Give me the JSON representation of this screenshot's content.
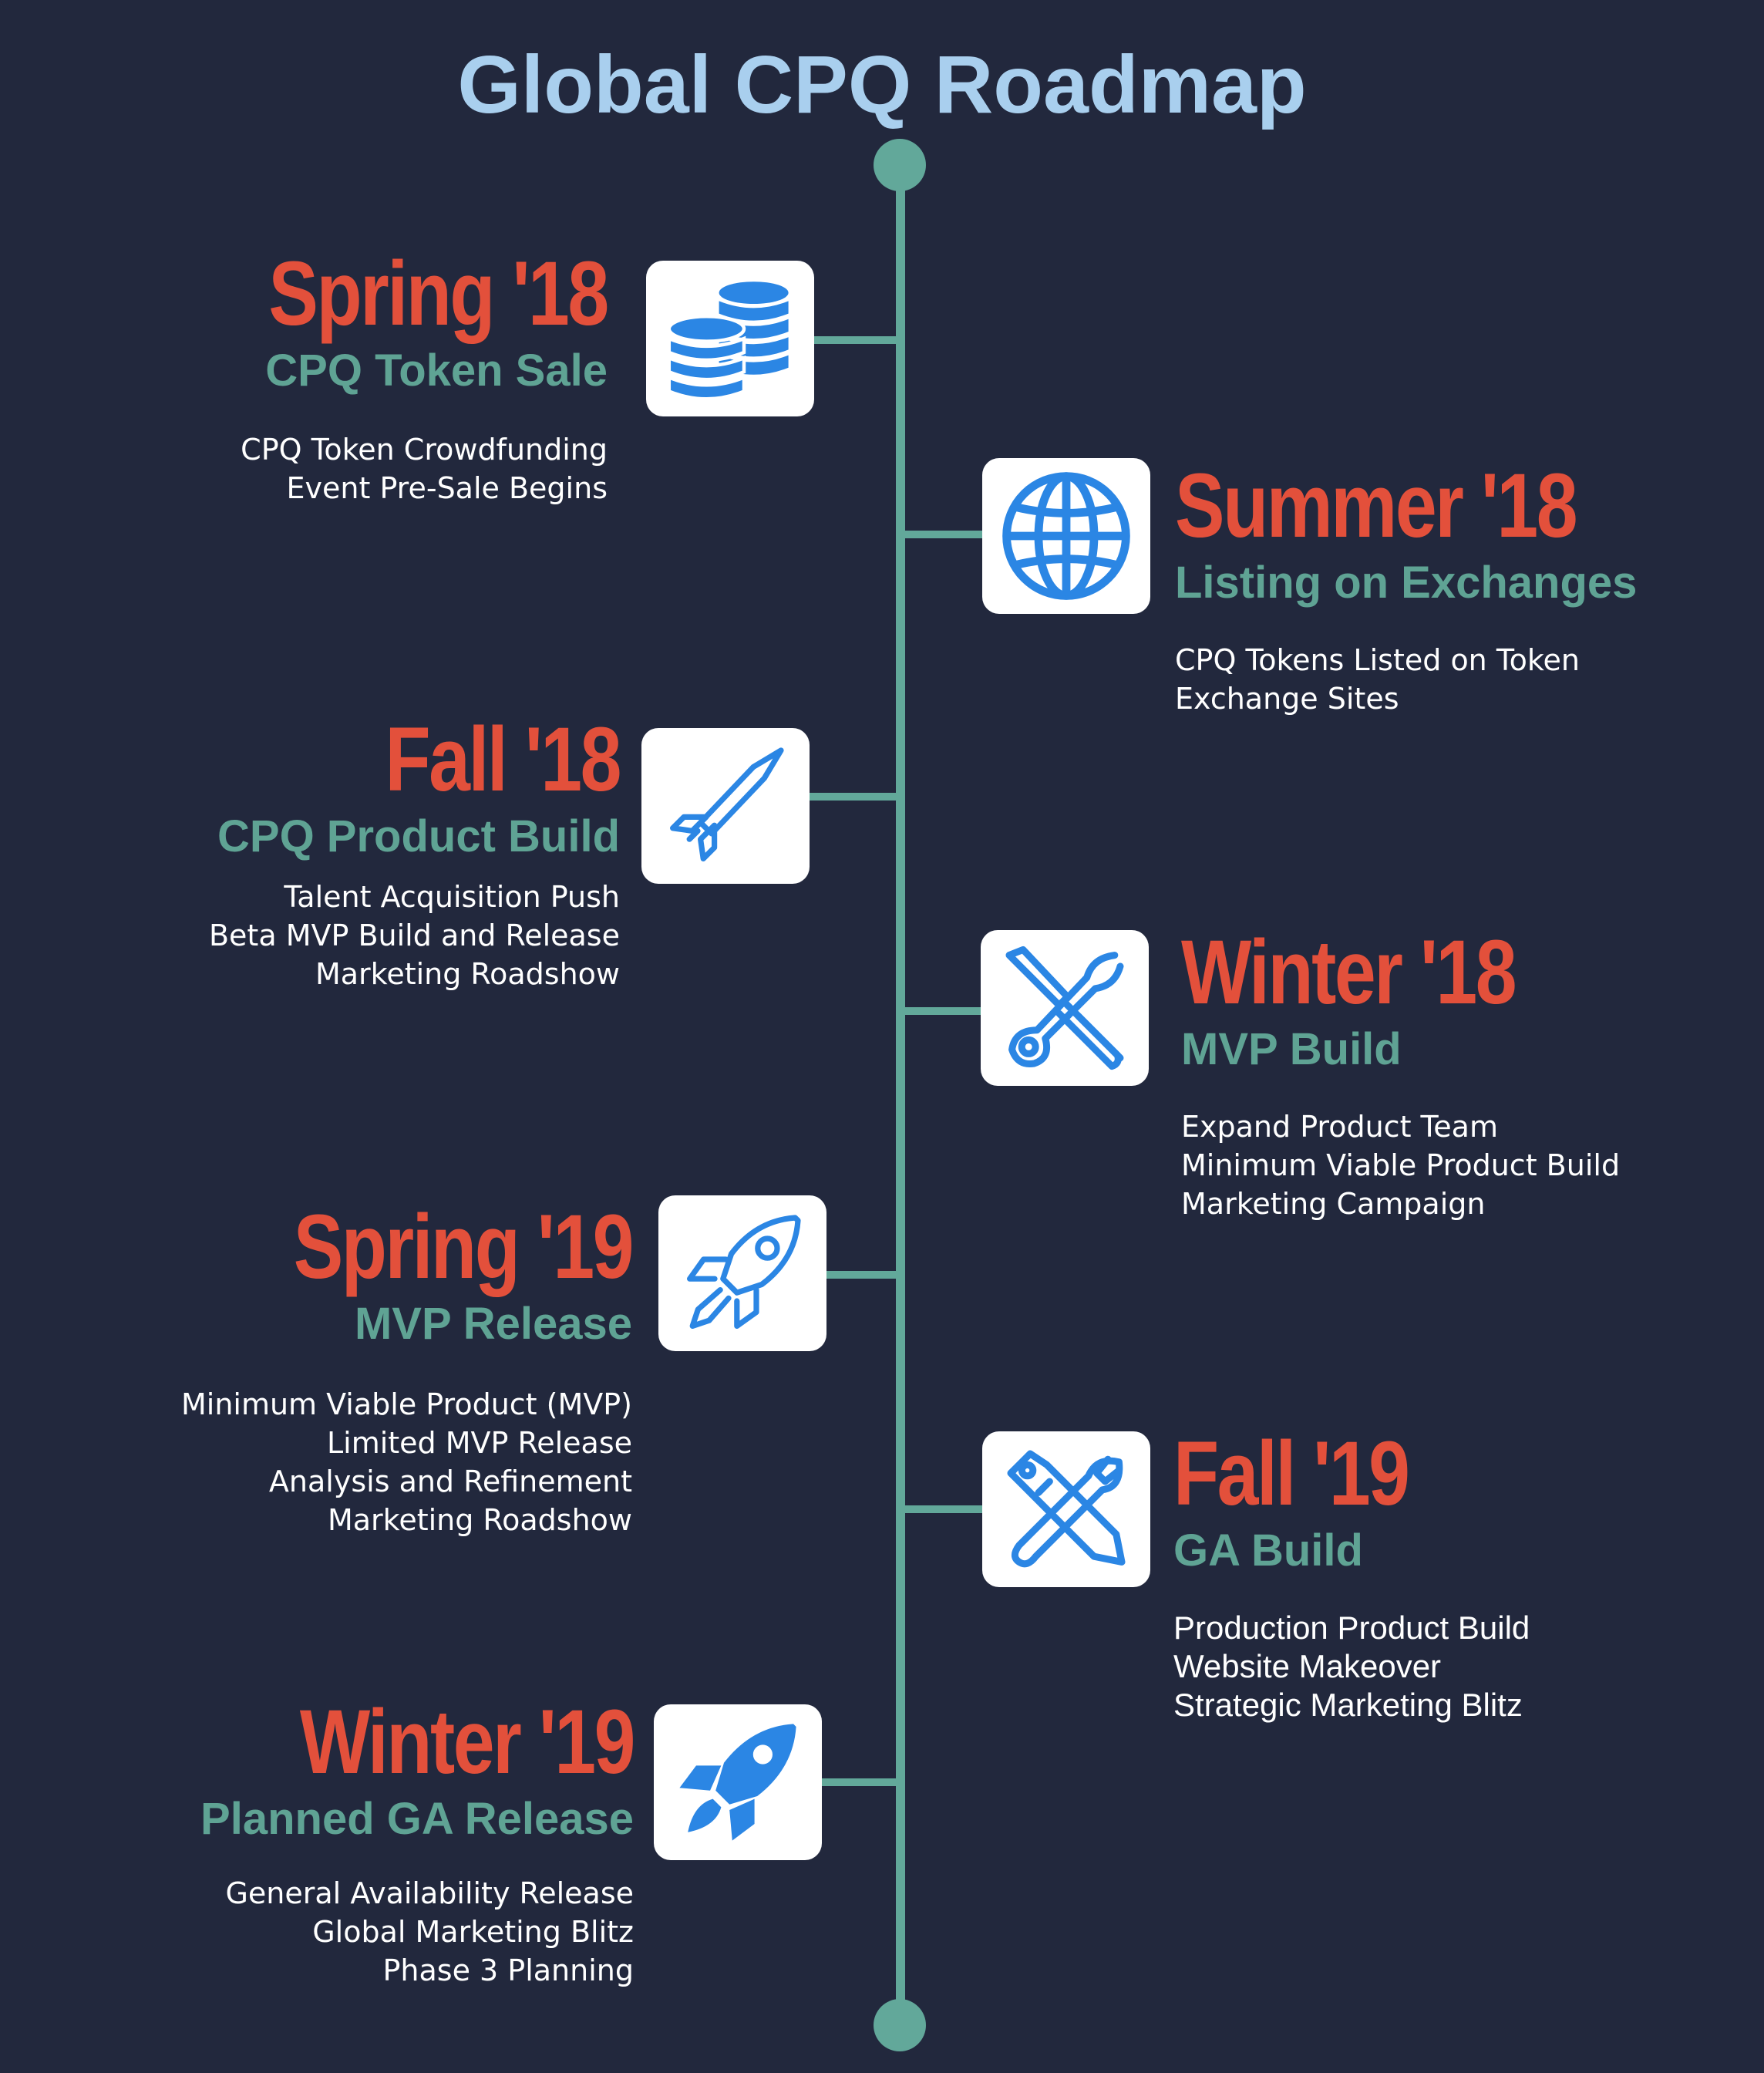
{
  "title": "Global CPQ Roadmap",
  "colors": {
    "background": "#22283d",
    "title": "#a9cfee",
    "season": "#e3503b",
    "phase": "#5fa394",
    "timeline": "#62a89a",
    "icon": "#2b86e4",
    "details": "#ffffff"
  },
  "milestones": [
    {
      "season": "Spring '18",
      "phase": "CPQ Token Sale",
      "icon": "coins-icon",
      "details": [
        "CPQ Token Crowdfunding",
        "Event Pre-Sale Begins"
      ]
    },
    {
      "season": "Summer '18",
      "phase": "Listing on Exchanges",
      "icon": "globe-icon",
      "details": [
        "CPQ Tokens Listed on Token",
        "Exchange Sites"
      ]
    },
    {
      "season": "Fall '18",
      "phase": "CPQ Product Build",
      "icon": "missile-icon",
      "details": [
        "Talent Acquisition Push",
        "Beta MVP Build and Release",
        "Marketing Roadshow"
      ]
    },
    {
      "season": "Winter '18",
      "phase": "MVP Build",
      "icon": "wrench-screwdriver-icon",
      "details": [
        "Expand Product Team",
        "Minimum Viable Product Build",
        "Marketing Campaign"
      ]
    },
    {
      "season": "Spring '19",
      "phase": "MVP Release",
      "icon": "rocket-outline-icon",
      "details": [
        "Minimum Viable Product (MVP)",
        "Limited MVP Release",
        "Analysis and Refinement",
        "Marketing Roadshow"
      ]
    },
    {
      "season": "Fall '19",
      "phase": "GA Build",
      "icon": "pen-wrench-icon",
      "details": [
        "Production Product Build",
        "Website Makeover",
        "Strategic Marketing Blitz"
      ]
    },
    {
      "season": "Winter '19",
      "phase": "Planned GA Release",
      "icon": "rocket-solid-icon",
      "details": [
        "General Availability Release",
        "Global Marketing Blitz",
        "Phase 3 Planning"
      ]
    }
  ]
}
